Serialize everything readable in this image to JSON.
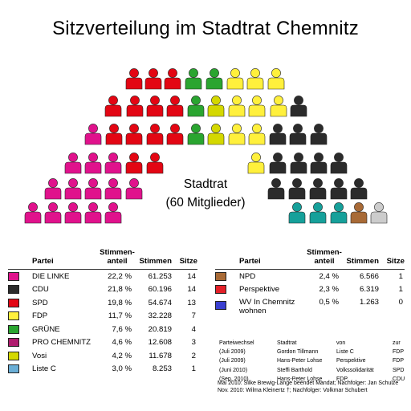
{
  "title": "Sitzverteilung im Stadtrat Chemnitz",
  "center_label": {
    "line1": "Stadtrat",
    "line2": "(60 Mitglieder)"
  },
  "table_headers": {
    "party": "Partei",
    "share_line1": "Stimmen-",
    "share_line2": "anteil",
    "votes": "Stimmen",
    "seats": "Sitze"
  },
  "chart_data": {
    "type": "table",
    "title": "Sitzverteilung im Stadtrat Chemnitz",
    "total_seats": 60,
    "parties": [
      {
        "name": "DIE LINKE",
        "share": "22,2 %",
        "votes": "61.253",
        "seats": 14,
        "color": "#e0128c"
      },
      {
        "name": "CDU",
        "share": "21,8 %",
        "votes": "60.196",
        "seats": 14,
        "color": "#2b2b2b"
      },
      {
        "name": "SPD",
        "share": "19,8 %",
        "votes": "54.674",
        "seats": 13,
        "color": "#e30613"
      },
      {
        "name": "FDP",
        "share": "11,7 %",
        "votes": "32.228",
        "seats": 7,
        "color": "#fff03c"
      },
      {
        "name": "GRÜNE",
        "share": "7,6 %",
        "votes": "20.819",
        "seats": 4,
        "color": "#2aa530"
      },
      {
        "name": "PRO CHEMNITZ",
        "share": "4,6 %",
        "votes": "12.608",
        "seats": 3,
        "color": "#b01c6f"
      },
      {
        "name": "Vosi",
        "share": "4,2 %",
        "votes": "11.678",
        "seats": 2,
        "color": "#d4d800"
      },
      {
        "name": "Liste C",
        "share": "3,0 %",
        "votes": "8.253",
        "seats": 1,
        "color": "#6aaed6"
      },
      {
        "name": "NPD",
        "share": "2,4 %",
        "votes": "6.566",
        "seats": 1,
        "color": "#a86a36"
      },
      {
        "name": "Perspektive",
        "share": "2,3 %",
        "votes": "6.319",
        "seats": 1,
        "color": "#e32028"
      },
      {
        "name": "WV In Chemnitz wohnen",
        "name_line1": "WV In Chemnitz",
        "name_line2": "wohnen",
        "share": "0,5 %",
        "votes": "1.263",
        "seats": 0,
        "color": "#3a3fd0"
      }
    ],
    "current_seats": [
      {
        "party": "DIE LINKE",
        "count": 14,
        "color": "#e0128c"
      },
      {
        "party": "SPD",
        "count": 13,
        "color": "#e30613"
      },
      {
        "party": "GRÜNE",
        "count": 4,
        "color": "#2aa530"
      },
      {
        "party": "Vosi",
        "count": 2,
        "color": "#d4d800"
      },
      {
        "party": "FDP",
        "count": 9,
        "color": "#fff03c"
      },
      {
        "party": "CDU",
        "count": 13,
        "color": "#2b2b2b"
      },
      {
        "party": "PRO CHEMNITZ",
        "count": 3,
        "color": "#16a09a"
      },
      {
        "party": "NPD",
        "count": 1,
        "color": "#a86a36"
      }
    ]
  },
  "changes": {
    "headers": [
      "Parteiwechsel",
      "Stadtrat",
      "von",
      "zur"
    ],
    "rows": [
      [
        "(Juli 2009)",
        "Gordon Tillmann",
        "Liste C",
        "FDP"
      ],
      [
        "(Juli 2009)",
        "Hans-Peter Lohse",
        "Perspektive",
        "FDP"
      ],
      [
        "(Juni 2010)",
        "Steffi Barthold",
        "Volkssolidarität",
        "SPD"
      ],
      [
        "(Sep. 2010)",
        "Hans-Peter Lohse",
        "FDP",
        "CDU"
      ]
    ]
  },
  "notes": [
    "Mai  2010: Silke Brewig-Lange beendet Mandat; Nachfolger: Jan Schulze",
    "Nov. 2010: Wilma Kleinertz †; Nachfolger: Volkmar Schubert"
  ]
}
